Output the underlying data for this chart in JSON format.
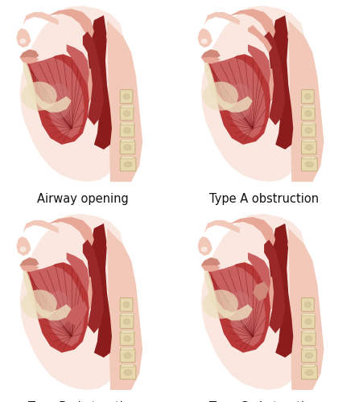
{
  "labels": [
    "Airway opening",
    "Type A obstruction",
    "Type B obstruction",
    "Type C obstruction"
  ],
  "label_fontsize": 10.5,
  "label_color": "#111111",
  "bg_color": "#ffffff",
  "skin_very_light": "#fae8e0",
  "skin_light": "#f2c8b8",
  "skin_mid": "#e8a898",
  "skin_dark": "#d08878",
  "muscle_very_dark": "#7a1818",
  "muscle_dark": "#9b2828",
  "muscle_mid": "#b83838",
  "muscle_light": "#c86060",
  "muscle_highlight": "#d08080",
  "throat_bg": "#8b1c1c",
  "bone_light": "#ede0c0",
  "bone_mid": "#d8c8a0",
  "bone_dark": "#c4b080",
  "spine_fill": "#e8d8b0",
  "spine_edge": "#c0a870",
  "white": "#ffffff",
  "near_white": "#f8f0ec"
}
